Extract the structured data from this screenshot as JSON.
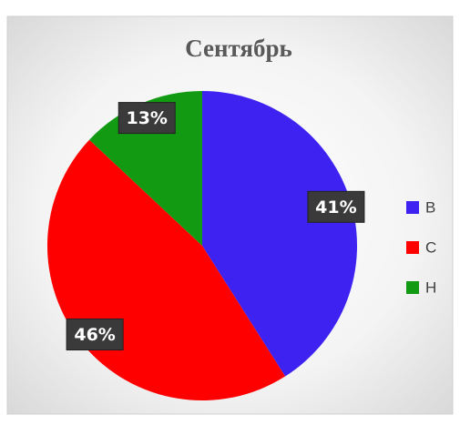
{
  "chart_data": {
    "type": "pie",
    "title": "Сентябрь",
    "categories": [
      "В",
      "С",
      "Н"
    ],
    "values": [
      41,
      46,
      13
    ],
    "value_labels": [
      "41%",
      "46%",
      "13%"
    ],
    "colors": [
      "#3d22f2",
      "#ff0000",
      "#129a12"
    ],
    "legend": "right"
  }
}
